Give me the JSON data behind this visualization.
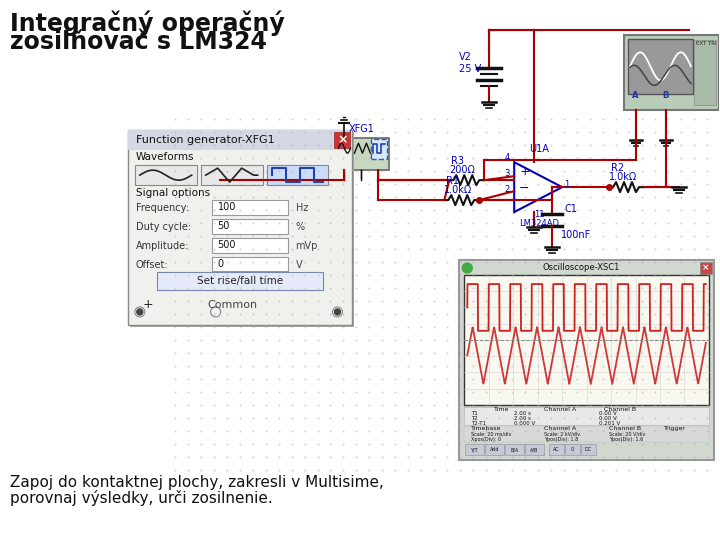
{
  "title_line1": "Integračný operačný",
  "title_line2": "zosilňovač s LM324",
  "bg_color": "#ffffff",
  "dot_color": "#aaaaaa",
  "wire_color": "#aa0000",
  "component_color": "#111111",
  "label_color": "#0000bb",
  "title_fontsize": 17,
  "subtitle_fontsize": 11,
  "freq_gen_title": "Function generator-XFG1",
  "freq_gen_fields": [
    [
      "Frequency:",
      "100",
      "Hz"
    ],
    [
      "Duty cycle:",
      "50",
      "%"
    ],
    [
      "Amplitude:",
      "500",
      "mVp"
    ],
    [
      "Offset:",
      "0",
      "V"
    ]
  ],
  "set_btn": "Set rise/fall time",
  "plus_label": "+",
  "common_label": "Common",
  "subtitle1": "Zapoj do kontaktnej plochy, zakresli v Multisime,",
  "subtitle2": "porovnaj výsledky, urči zosilnenie."
}
